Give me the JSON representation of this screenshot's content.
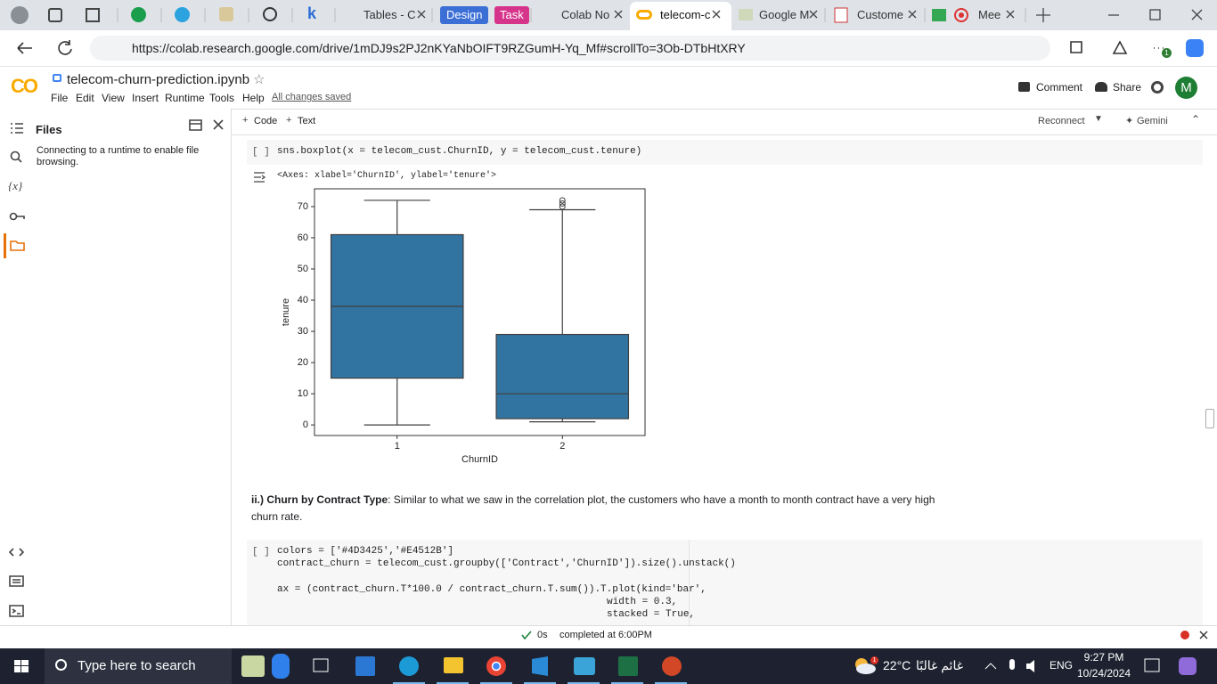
{
  "browser": {
    "tabs": [
      "Tables - C",
      "Design",
      "Task",
      "Colab No",
      "telecom-c",
      "Google M",
      "Custome",
      "Mee"
    ],
    "url": "https://colab.research.google.com/drive/1mDJ9s2PJ2nKYaNbOIFT9RZGumH-Yq_Mf#scrollTo=3Ob-DTbHtXRY",
    "extension_badge": "1"
  },
  "notebook": {
    "logo": "CO",
    "filename": "telecom-churn-prediction.ipynb",
    "menu": [
      "File",
      "Edit",
      "View",
      "Insert",
      "Runtime",
      "Tools",
      "Help"
    ],
    "save_status": "All changes saved",
    "actions": [
      "Comment",
      "Share"
    ],
    "avatar": "M",
    "toolbar": [
      "Code",
      "Text"
    ],
    "runtime": "Reconnect",
    "assistant": "Gemini"
  },
  "sidebar": {
    "title": "Files",
    "message": "Connecting to a runtime to enable file browsing.",
    "variables_icon": "{x}"
  },
  "cells": [
    {
      "bracket": "[ ]",
      "code": [
        "sns.boxplot(x = telecom_cust.ChurnID, y = telecom_cust.tenure)"
      ],
      "output": "<Axes: xlabel='ChurnID', ylabel='tenure'>"
    },
    {
      "bracket": "[ ]",
      "code": [
        "colors = ['#4D3425','#E4512B']",
        "contract_churn = telecom_cust.groupby(['Contract','ChurnID']).size().unstack()",
        "ax = (contract_churn.T*100.0 / contract_churn.T.sum()).T.plot(kind='bar',",
        "width = 0.3,",
        "stacked = True,"
      ]
    }
  ],
  "markdown": {
    "lead": "ii.) Churn by Contract Type",
    "text": ": Similar to what we saw in the correlation plot, the customers who have a month to month contract have a very high churn rate."
  },
  "chart_data": {
    "type": "box",
    "xlabel": "ChurnID",
    "ylabel": "tenure",
    "categories": [
      "1",
      "2"
    ],
    "color": "#3274a1",
    "low": [
      0,
      1
    ],
    "q1": [
      15,
      2
    ],
    "median": [
      38,
      10
    ],
    "q3": [
      61,
      29
    ],
    "high": [
      72,
      69
    ],
    "outliers": [
      [],
      [
        70,
        71,
        72
      ]
    ],
    "ylim": [
      -3.4,
      75.7
    ],
    "yticks": [
      0,
      10,
      20,
      30,
      40,
      50,
      60,
      70
    ]
  },
  "status": {
    "duration": "0s",
    "message": "completed at 6:00PM"
  },
  "taskbar": {
    "search": "Type here to search",
    "weather_badge": "1",
    "temperature": "22°C",
    "weather_text": "غائم غالبًا",
    "language": "ENG",
    "time": "9:27 PM",
    "date": "10/24/2024"
  }
}
